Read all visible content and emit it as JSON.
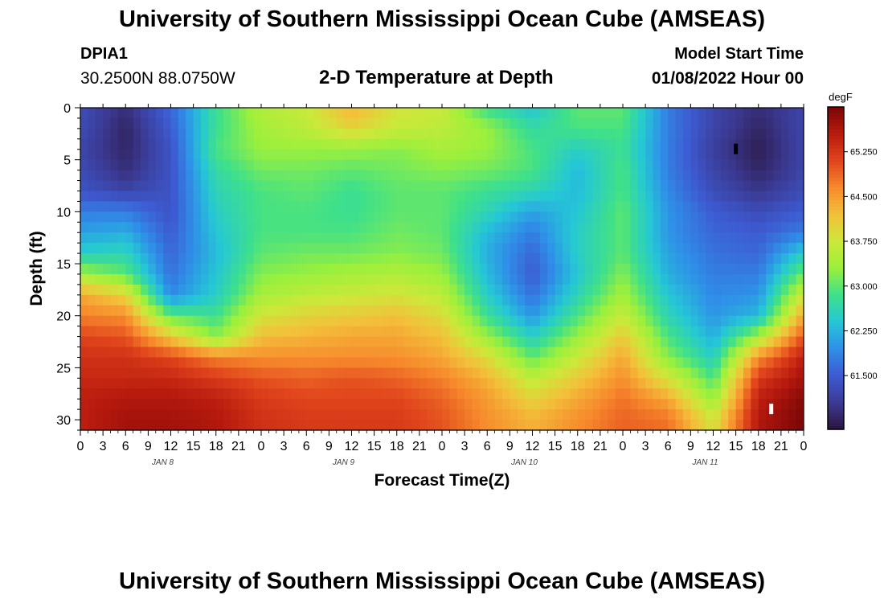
{
  "header": {
    "title": "University of Southern Mississippi Ocean Cube (AMSEAS)",
    "station": "DPIA1",
    "coordinates": "30.2500N  88.0750W",
    "subtitle": "2-D Temperature at Depth",
    "start_label": "Model Start Time",
    "start_value": "01/08/2022 Hour 00"
  },
  "footer": {
    "title": "University of Southern Mississippi Ocean Cube (AMSEAS)"
  },
  "chart_data": {
    "type": "heatmap",
    "title": "2-D Temperature at Depth",
    "xlabel": "Forecast Time(Z)",
    "ylabel": "Depth (ft)",
    "x_tick_labels": [
      "0",
      "3",
      "6",
      "9",
      "12",
      "15",
      "18",
      "21",
      "0",
      "3",
      "6",
      "9",
      "12",
      "15",
      "18",
      "21",
      "0",
      "3",
      "6",
      "9",
      "12",
      "15",
      "18",
      "21",
      "0",
      "3",
      "6",
      "9",
      "12",
      "15",
      "18",
      "21",
      "0"
    ],
    "x_hours_range": [
      0,
      96
    ],
    "day_labels": [
      "JAN 8",
      "JAN 9",
      "JAN 10",
      "JAN 11"
    ],
    "y_ticks": [
      0,
      5,
      10,
      15,
      20,
      25,
      30
    ],
    "ylim": [
      0,
      31
    ],
    "colorbar": {
      "unit": "degF",
      "ticks": [
        "65.250",
        "64.500",
        "63.750",
        "63.000",
        "62.250",
        "61.500"
      ],
      "tick_values": [
        65.25,
        64.5,
        63.75,
        63.0,
        62.25,
        61.5
      ],
      "range": [
        60.6,
        66.0
      ]
    },
    "colors": {
      "scale": [
        "#2b1640",
        "#3b3a94",
        "#3d5bd2",
        "#2f8fe8",
        "#25c7d6",
        "#3fe08a",
        "#9bf03c",
        "#cde83a",
        "#f3c03a",
        "#f7892c",
        "#e0441c",
        "#b81a0e",
        "#7a0606"
      ]
    },
    "depth_levels": [
      0,
      2,
      4,
      6,
      8,
      10,
      12,
      14,
      16,
      18,
      20,
      22,
      24,
      26,
      28,
      30
    ],
    "time_hours": [
      0,
      6,
      12,
      18,
      24,
      30,
      36,
      42,
      48,
      54,
      60,
      66,
      72,
      78,
      84,
      90,
      96
    ],
    "temperature": [
      [
        61.3,
        60.9,
        61.6,
        62.8,
        63.5,
        63.7,
        64.3,
        63.8,
        63.7,
        62.8,
        62.4,
        63.0,
        63.0,
        61.8,
        61.2,
        60.9,
        61.2
      ],
      [
        61.3,
        60.8,
        61.5,
        62.8,
        63.4,
        63.6,
        64.0,
        63.7,
        63.6,
        63.3,
        62.7,
        62.9,
        62.9,
        61.8,
        61.2,
        60.8,
        61.2
      ],
      [
        61.2,
        60.8,
        61.4,
        62.9,
        63.3,
        63.3,
        63.3,
        63.2,
        63.4,
        63.3,
        62.9,
        62.5,
        62.8,
        61.8,
        61.1,
        60.7,
        61.2
      ],
      [
        61.3,
        60.9,
        61.4,
        62.7,
        63.1,
        63.1,
        63.0,
        63.1,
        63.2,
        63.1,
        62.9,
        62.3,
        62.9,
        61.8,
        61.2,
        60.8,
        61.2
      ],
      [
        61.4,
        61.2,
        61.4,
        62.6,
        62.9,
        63.0,
        62.8,
        63.0,
        63.0,
        62.8,
        62.6,
        62.3,
        62.9,
        61.9,
        61.3,
        61.0,
        61.3
      ],
      [
        61.8,
        61.8,
        61.4,
        62.5,
        62.9,
        62.9,
        62.8,
        63.0,
        63.0,
        62.6,
        62.1,
        62.4,
        63.0,
        62.0,
        61.5,
        61.3,
        61.5
      ],
      [
        62.1,
        62.2,
        61.5,
        62.4,
        62.9,
        62.9,
        62.9,
        63.1,
        63.0,
        62.3,
        61.8,
        62.5,
        63.0,
        62.0,
        61.6,
        61.5,
        61.8
      ],
      [
        62.5,
        62.6,
        61.6,
        62.3,
        63.0,
        63.1,
        63.1,
        63.2,
        63.1,
        62.2,
        61.6,
        62.5,
        63.0,
        62.1,
        61.7,
        61.6,
        62.5
      ],
      [
        63.4,
        63.0,
        61.7,
        62.4,
        63.2,
        63.3,
        63.4,
        63.5,
        63.3,
        62.3,
        61.5,
        62.4,
        63.2,
        62.2,
        61.8,
        61.8,
        63.1
      ],
      [
        64.4,
        64.0,
        61.9,
        62.5,
        63.4,
        63.6,
        63.7,
        63.8,
        63.6,
        62.5,
        61.7,
        62.6,
        63.4,
        62.4,
        61.9,
        62.0,
        63.8
      ],
      [
        64.7,
        64.6,
        63.0,
        62.8,
        63.8,
        64.0,
        64.1,
        64.2,
        63.9,
        62.8,
        62.0,
        62.9,
        63.7,
        62.6,
        62.0,
        62.3,
        64.4
      ],
      [
        65.1,
        65.0,
        64.1,
        63.2,
        64.2,
        64.3,
        64.4,
        64.4,
        64.2,
        63.3,
        62.5,
        63.3,
        64.1,
        62.9,
        62.2,
        63.4,
        65.0
      ],
      [
        65.3,
        65.3,
        65.1,
        64.7,
        64.6,
        64.6,
        64.6,
        64.6,
        64.4,
        63.9,
        63.0,
        63.7,
        64.4,
        63.2,
        62.5,
        64.6,
        65.5
      ],
      [
        65.4,
        65.4,
        65.4,
        65.2,
        65.0,
        64.9,
        65.0,
        64.9,
        64.7,
        64.3,
        63.6,
        64.1,
        64.6,
        63.8,
        62.9,
        65.2,
        65.7
      ],
      [
        65.5,
        65.6,
        65.6,
        65.5,
        65.2,
        65.1,
        65.1,
        65.1,
        64.9,
        64.5,
        64.0,
        64.4,
        64.8,
        64.4,
        63.3,
        65.5,
        65.9
      ],
      [
        65.5,
        65.7,
        65.7,
        65.6,
        65.3,
        65.2,
        65.2,
        65.2,
        65.0,
        64.6,
        64.3,
        64.6,
        64.9,
        64.8,
        63.8,
        65.6,
        66.0
      ]
    ],
    "marks": [
      {
        "label": "black-marker",
        "hour": 87,
        "depth": 4.0,
        "color": "#000000"
      },
      {
        "label": "white-marker",
        "hour": 91.7,
        "depth": 29.0,
        "color": "#ffffff"
      }
    ]
  }
}
